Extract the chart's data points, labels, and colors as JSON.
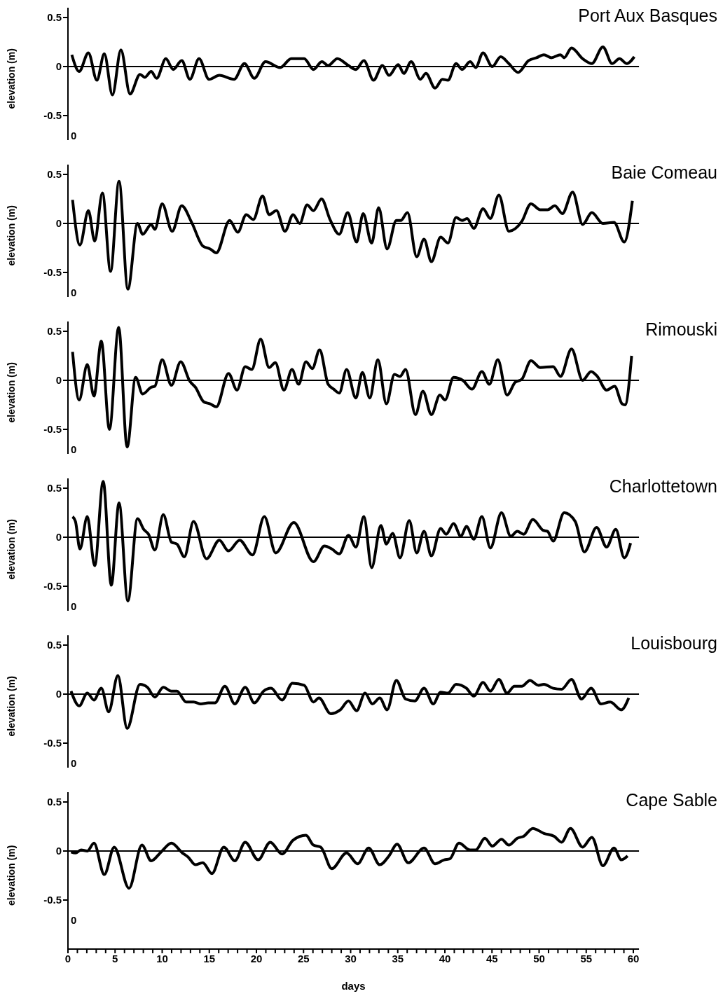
{
  "chart_data": [
    {
      "type": "line",
      "title": "Port Aux Basques",
      "ylabel": "elevation (m)",
      "annotations": [
        "0"
      ],
      "tick_labels": "y",
      "xlim": [
        0,
        60.6
      ],
      "ylim": [
        -0.75,
        0.6
      ],
      "yticks": [
        0.5,
        0,
        -0.5
      ],
      "ref_lines": [
        {
          "axis": "y",
          "value": 0,
          "color": "#000000"
        }
      ],
      "color": "#000000",
      "x": [
        0.41,
        1.19,
        2.17,
        3.07,
        3.86,
        4.72,
        5.62,
        6.59,
        7.65,
        8.16,
        8.83,
        9.41,
        10.39,
        11.17,
        12.08,
        12.94,
        13.91,
        14.97,
        16.07,
        17.63,
        18.73,
        19.78,
        20.96,
        22.52,
        23.7,
        25.07,
        26.05,
        26.95,
        27.61,
        28.59,
        29.77,
        30.55,
        31.41,
        32.43,
        33.37,
        34.07,
        35.05,
        35.64,
        36.42,
        37.4,
        37.99,
        38.96,
        39.74,
        40.33,
        41.19,
        41.82,
        42.68,
        43.27,
        44.05,
        45.03,
        45.93,
        46.79,
        47.77,
        48.87,
        49.73,
        50.51,
        51.29,
        52.27,
        52.66,
        53.44,
        54.62,
        55.6,
        56.77,
        57.75,
        58.53,
        59.32,
        60.1
      ],
      "values": [
        0.12,
        -0.05,
        0.14,
        -0.14,
        0.13,
        -0.29,
        0.17,
        -0.28,
        -0.08,
        -0.11,
        -0.05,
        -0.12,
        0.08,
        -0.03,
        0.06,
        -0.13,
        0.08,
        -0.13,
        -0.09,
        -0.13,
        0.03,
        -0.12,
        0.05,
        -0.01,
        0.08,
        0.08,
        -0.03,
        0.05,
        0.01,
        0.08,
        0.01,
        -0.03,
        0.06,
        -0.14,
        0.01,
        -0.09,
        0.02,
        -0.07,
        0.05,
        -0.13,
        -0.07,
        -0.22,
        -0.13,
        -0.14,
        0.03,
        -0.03,
        0.05,
        -0.01,
        0.14,
        0,
        0.1,
        0.03,
        -0.06,
        0.06,
        0.09,
        0.12,
        0.09,
        0.12,
        0.09,
        0.19,
        0.08,
        0.03,
        0.2,
        0.03,
        0.08,
        0.03,
        0.1
      ]
    },
    {
      "type": "line",
      "title": "Baie Comeau",
      "ylabel": "elevation (m)",
      "annotations": [
        "0"
      ],
      "tick_labels": "y",
      "xlim": [
        0,
        60.6
      ],
      "ylim": [
        -0.75,
        0.6
      ],
      "yticks": [
        0.5,
        0,
        -0.5
      ],
      "ref_lines": [
        {
          "axis": "y",
          "value": 0,
          "color": "#000000"
        }
      ],
      "color": "#000000",
      "x": [
        0.49,
        1.27,
        2.17,
        2.84,
        3.66,
        4.52,
        5.42,
        6.36,
        7.38,
        7.93,
        8.83,
        9.22,
        10.0,
        11.06,
        12.07,
        13.13,
        14.31,
        15.09,
        15.75,
        17.16,
        18.02,
        18.92,
        19.67,
        20.65,
        21.35,
        22.13,
        23.03,
        23.89,
        24.6,
        25.38,
        26.05,
        26.91,
        27.81,
        28.79,
        29.69,
        30.63,
        31.33,
        32.23,
        32.97,
        33.87,
        34.85,
        35.32,
        36.03,
        37.01,
        37.79,
        38.57,
        39.55,
        40.33,
        41.19,
        41.82,
        42.36,
        43.07,
        44.05,
        44.83,
        45.73,
        46.79,
        48.16,
        49.14,
        50.12,
        50.9,
        51.68,
        52.47,
        53.56,
        54.62,
        55.6,
        56.77,
        57.95,
        59.04,
        59.9
      ],
      "values": [
        0.24,
        -0.22,
        0.13,
        -0.18,
        0.31,
        -0.49,
        0.43,
        -0.67,
        0,
        -0.11,
        -0.01,
        -0.06,
        0.2,
        -0.08,
        0.18,
        0.01,
        -0.23,
        -0.26,
        -0.3,
        0.03,
        -0.09,
        0.09,
        0.04,
        0.28,
        0.09,
        0.13,
        -0.08,
        0.09,
        0,
        0.19,
        0.13,
        0.25,
        0.04,
        -0.11,
        0.11,
        -0.19,
        0.1,
        -0.2,
        0.16,
        -0.26,
        0.03,
        0.03,
        0.11,
        -0.34,
        -0.16,
        -0.39,
        -0.14,
        -0.2,
        0.06,
        0.03,
        0.05,
        -0.05,
        0.15,
        0.05,
        0.29,
        -0.08,
        0.02,
        0.2,
        0.14,
        0.14,
        0.18,
        0.1,
        0.32,
        -0.01,
        0.11,
        0,
        0.01,
        -0.19,
        0.23
      ]
    },
    {
      "type": "line",
      "title": "Rimouski",
      "ylabel": "elevation (m)",
      "annotations": [
        "0"
      ],
      "tick_labels": "y",
      "xlim": [
        0,
        60.6
      ],
      "ylim": [
        -0.75,
        0.6
      ],
      "yticks": [
        0.5,
        0,
        -0.5
      ],
      "ref_lines": [
        {
          "axis": "y",
          "value": 0,
          "color": "#000000"
        }
      ],
      "color": "#000000",
      "x": [
        0.49,
        1.19,
        2.05,
        2.76,
        3.54,
        4.4,
        5.38,
        6.28,
        7.18,
        7.93,
        8.83,
        9.22,
        10.0,
        10.98,
        11.96,
        12.94,
        13.52,
        14.42,
        15.09,
        15.75,
        17.04,
        17.94,
        18.81,
        19.51,
        20.45,
        21.35,
        22.01,
        22.92,
        23.78,
        24.48,
        25.26,
        25.93,
        26.71,
        27.61,
        28.2,
        28.79,
        29.57,
        30.55,
        31.25,
        32.03,
        32.89,
        33.79,
        34.65,
        35.24,
        35.83,
        36.88,
        37.67,
        38.57,
        39.47,
        40.02,
        40.92,
        41.9,
        42.88,
        43.93,
        44.72,
        45.62,
        46.6,
        47.46,
        48.16,
        49.14,
        50.12,
        51.49,
        52.27,
        53.44,
        54.62,
        55.52,
        56.18,
        57.16,
        58.02,
        58.81,
        59.12,
        59.82
      ],
      "values": [
        0.29,
        -0.2,
        0.16,
        -0.16,
        0.4,
        -0.5,
        0.54,
        -0.68,
        0.03,
        -0.14,
        -0.07,
        -0.06,
        0.21,
        -0.05,
        0.19,
        -0.01,
        -0.07,
        -0.22,
        -0.24,
        -0.27,
        0.07,
        -0.1,
        0.14,
        0.11,
        0.42,
        0.13,
        0.18,
        -0.1,
        0.11,
        -0.04,
        0.19,
        0.12,
        0.31,
        -0.04,
        -0.09,
        -0.13,
        0.11,
        -0.18,
        0.08,
        -0.18,
        0.21,
        -0.24,
        0.06,
        0.04,
        0.11,
        -0.35,
        -0.11,
        -0.35,
        -0.15,
        -0.2,
        0.03,
        0,
        -0.09,
        0.09,
        -0.04,
        0.21,
        -0.15,
        -0.02,
        0.01,
        0.2,
        0.13,
        0.14,
        0.04,
        0.32,
        0,
        0.09,
        0.04,
        -0.1,
        -0.06,
        -0.24,
        -0.25,
        0.25
      ]
    },
    {
      "type": "line",
      "title": "Charlottetown",
      "ylabel": "elevation (m)",
      "annotations": [
        "0"
      ],
      "tick_labels": "y",
      "xlim": [
        0,
        60.6
      ],
      "ylim": [
        -0.75,
        0.6
      ],
      "yticks": [
        0.5,
        0,
        -0.5
      ],
      "ref_lines": [
        {
          "axis": "y",
          "value": 0,
          "color": "#000000"
        }
      ],
      "color": "#000000",
      "x": [
        0.49,
        0.8,
        1.27,
        2.05,
        2.84,
        3.74,
        4.6,
        5.42,
        6.36,
        7.38,
        8.04,
        8.55,
        9.22,
        10.12,
        10.98,
        11.57,
        12.35,
        13.33,
        14.7,
        16.07,
        17.04,
        18.22,
        19.59,
        20.84,
        22.05,
        23.97,
        26.05,
        27.22,
        28.0,
        28.79,
        29.77,
        30.55,
        31.41,
        32.23,
        33.21,
        33.79,
        34.46,
        35.24,
        36.22,
        37.01,
        37.79,
        38.57,
        39.55,
        40.14,
        40.92,
        41.7,
        42.29,
        43.07,
        43.93,
        44.83,
        46.01,
        46.99,
        47.69,
        48.36,
        49.34,
        50.43,
        50.9,
        51.49,
        52.66,
        53.84,
        54.81,
        56.1,
        57.16,
        58.14,
        59.04,
        59.71
      ],
      "values": [
        0.21,
        0.16,
        -0.12,
        0.21,
        -0.29,
        0.57,
        -0.49,
        0.35,
        -0.65,
        0.19,
        0.08,
        0.03,
        -0.13,
        0.23,
        -0.05,
        -0.07,
        -0.2,
        0.16,
        -0.22,
        -0.03,
        -0.14,
        -0.03,
        -0.18,
        0.21,
        -0.16,
        0.15,
        -0.25,
        -0.09,
        -0.12,
        -0.17,
        0.02,
        -0.1,
        0.21,
        -0.31,
        0.12,
        -0.07,
        0.04,
        -0.21,
        0.17,
        -0.16,
        0.06,
        -0.19,
        0.09,
        0.03,
        0.14,
        0.01,
        0.11,
        -0.02,
        0.21,
        -0.11,
        0.25,
        0.01,
        0.06,
        0.03,
        0.18,
        0.07,
        0.06,
        -0.04,
        0.25,
        0.16,
        -0.15,
        0.1,
        -0.1,
        0.08,
        -0.21,
        -0.06
      ]
    },
    {
      "type": "line",
      "title": "Louisbourg",
      "ylabel": "elevation (m)",
      "annotations": [
        "0"
      ],
      "tick_labels": "y",
      "xlim": [
        0,
        60.6
      ],
      "ylim": [
        -0.75,
        0.6
      ],
      "yticks": [
        0.5,
        0,
        -0.5
      ],
      "ref_lines": [
        {
          "axis": "y",
          "value": 0,
          "color": "#000000"
        }
      ],
      "color": "#000000",
      "x": [
        0.33,
        1.19,
        2.05,
        2.76,
        3.54,
        4.32,
        5.3,
        6.28,
        7.65,
        8.43,
        9.22,
        10.12,
        10.98,
        11.57,
        12.54,
        13.33,
        14.11,
        14.89,
        15.6,
        16.65,
        17.71,
        18.81,
        19.78,
        20.76,
        21.55,
        22.72,
        23.82,
        25.07,
        26.05,
        26.64,
        27.89,
        28.9,
        29.77,
        30.63,
        31.53,
        32.31,
        33.09,
        33.87,
        34.85,
        35.83,
        36.81,
        37.79,
        38.77,
        39.55,
        40.33,
        41.19,
        42.29,
        43.07,
        44.05,
        44.83,
        45.73,
        46.6,
        47.38,
        48.16,
        49.03,
        49.93,
        50.51,
        51.49,
        52.39,
        53.44,
        54.5,
        55.52,
        56.57,
        57.55,
        58.73,
        59.51
      ],
      "values": [
        0.03,
        -0.12,
        0.01,
        -0.06,
        0.06,
        -0.18,
        0.19,
        -0.35,
        0.1,
        0.07,
        -0.03,
        0.07,
        0.03,
        0.03,
        -0.08,
        -0.08,
        -0.1,
        -0.09,
        -0.09,
        0.08,
        -0.1,
        0.07,
        -0.09,
        0.03,
        0.06,
        -0.06,
        0.11,
        0.09,
        -0.08,
        -0.04,
        -0.2,
        -0.16,
        -0.07,
        -0.17,
        0.01,
        -0.1,
        -0.04,
        -0.16,
        0.14,
        -0.05,
        -0.07,
        0.06,
        -0.1,
        0.02,
        0.01,
        0.1,
        0.06,
        -0.02,
        0.12,
        0.03,
        0.15,
        0.01,
        0.08,
        0.08,
        0.14,
        0.09,
        0.1,
        0.06,
        0.05,
        0.15,
        -0.05,
        0.06,
        -0.1,
        -0.08,
        -0.16,
        -0.04
      ]
    },
    {
      "type": "line",
      "title": "Cape Sable",
      "ylabel": "elevation (m)",
      "xlabel": "days",
      "annotations": [
        "0"
      ],
      "xlim": [
        0,
        60.6
      ],
      "ylim": [
        -1,
        0.6
      ],
      "yticks": [
        0.5,
        0,
        -0.5
      ],
      "ref_lines": [
        {
          "axis": "y",
          "value": 0,
          "color": "#000000"
        }
      ],
      "color": "#000000",
      "xticks": [
        0,
        {
          "value": 1,
          "label": null
        },
        {
          "value": 2,
          "label": null
        },
        {
          "value": 3,
          "label": null
        },
        {
          "value": 4,
          "label": null
        },
        5,
        {
          "value": 6,
          "label": null
        },
        {
          "value": 7,
          "label": null
        },
        {
          "value": 8,
          "label": null
        },
        {
          "value": 9,
          "label": null
        },
        10,
        {
          "value": 11,
          "label": null
        },
        {
          "value": 12,
          "label": null
        },
        {
          "value": 13,
          "label": null
        },
        {
          "value": 14,
          "label": null
        },
        15,
        {
          "value": 16,
          "label": null
        },
        {
          "value": 17,
          "label": null
        },
        {
          "value": 18,
          "label": null
        },
        {
          "value": 19,
          "label": null
        },
        20,
        {
          "value": 21,
          "label": null
        },
        {
          "value": 22,
          "label": null
        },
        {
          "value": 23,
          "label": null
        },
        {
          "value": 24,
          "label": null
        },
        25,
        {
          "value": 26,
          "label": null
        },
        {
          "value": 27,
          "label": null
        },
        {
          "value": 28,
          "label": null
        },
        {
          "value": 29,
          "label": null
        },
        30,
        {
          "value": 31,
          "label": null
        },
        {
          "value": 32,
          "label": null
        },
        {
          "value": 33,
          "label": null
        },
        {
          "value": 34,
          "label": null
        },
        35,
        {
          "value": 36,
          "label": null
        },
        {
          "value": 37,
          "label": null
        },
        {
          "value": 38,
          "label": null
        },
        {
          "value": 39,
          "label": null
        },
        40,
        {
          "value": 41,
          "label": null
        },
        {
          "value": 42,
          "label": null
        },
        {
          "value": 43,
          "label": null
        },
        {
          "value": 44,
          "label": null
        },
        45,
        {
          "value": 46,
          "label": null
        },
        {
          "value": 47,
          "label": null
        },
        {
          "value": 48,
          "label": null
        },
        {
          "value": 49,
          "label": null
        },
        50,
        {
          "value": 51,
          "label": null
        },
        {
          "value": 52,
          "label": null
        },
        {
          "value": 53,
          "label": null
        },
        {
          "value": 54,
          "label": null
        },
        55,
        {
          "value": 56,
          "label": null
        },
        {
          "value": 57,
          "label": null
        },
        {
          "value": 58,
          "label": null
        },
        {
          "value": 59,
          "label": null
        },
        60
      ],
      "x": [
        0.33,
        0.8,
        1.39,
        2.05,
        2.76,
        3.86,
        4.91,
        6.48,
        7.85,
        8.83,
        9.88,
        10.98,
        12.15,
        12.74,
        13.52,
        14.31,
        15.28,
        16.54,
        17.71,
        18.81,
        20.18,
        21.47,
        22.72,
        23.89,
        25.26,
        26.05,
        26.83,
        28.0,
        29.57,
        30.74,
        31.92,
        33.09,
        34.07,
        34.93,
        36.11,
        37.79,
        38.96,
        39.94,
        40.53,
        41.5,
        42.68,
        43.27,
        44.25,
        45.03,
        46.01,
        46.79,
        47.69,
        48.36,
        49.34,
        50.51,
        51.6,
        52.39,
        53.33,
        54.62,
        55.6,
        56.77,
        57.95,
        58.73,
        59.39
      ],
      "values": [
        -0.01,
        -0.02,
        0.01,
        0,
        0.08,
        -0.24,
        0.04,
        -0.38,
        0.06,
        -0.1,
        -0.01,
        0.08,
        -0.02,
        -0.06,
        -0.14,
        -0.12,
        -0.23,
        0.04,
        -0.1,
        0.09,
        -0.09,
        0.09,
        -0.03,
        0.11,
        0.16,
        0.06,
        0.04,
        -0.18,
        -0.02,
        -0.13,
        0.03,
        -0.14,
        -0.05,
        0.07,
        -0.12,
        0.03,
        -0.13,
        -0.09,
        -0.08,
        0.08,
        0.01,
        0.01,
        0.13,
        0.05,
        0.12,
        0.06,
        0.13,
        0.15,
        0.23,
        0.18,
        0.15,
        0.09,
        0.23,
        0.04,
        0.14,
        -0.15,
        0.03,
        -0.09,
        -0.05
      ]
    }
  ]
}
